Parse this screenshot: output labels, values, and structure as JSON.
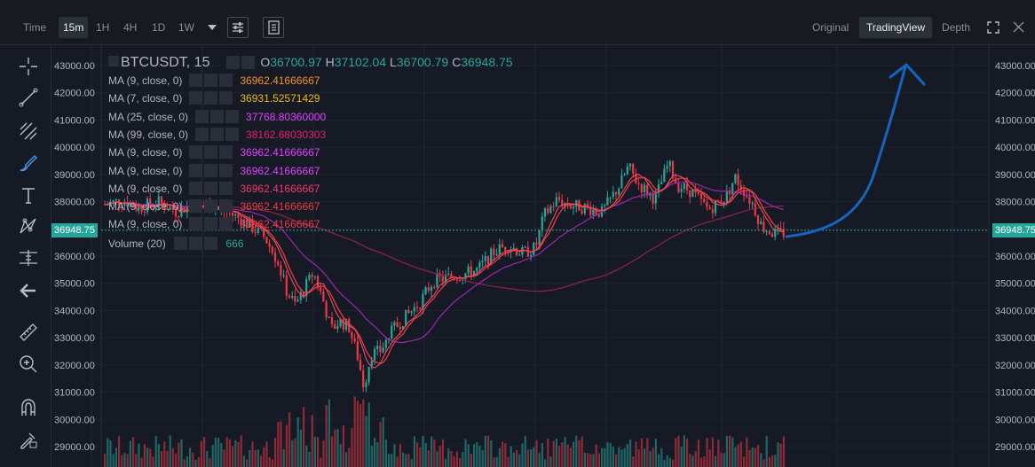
{
  "toolbar": {
    "time_label": "Time",
    "intervals": [
      "15m",
      "1H",
      "4H",
      "1D",
      "1W"
    ],
    "active_interval": "15m",
    "views": [
      "Original",
      "TradingView",
      "Depth"
    ],
    "active_view": "TradingView"
  },
  "chart": {
    "symbol": "BTCUSDT, 15",
    "ohlc": {
      "o_label": "O",
      "o": "36700.97",
      "h_label": "H",
      "h": "37102.04",
      "l_label": "L",
      "l": "36700.79",
      "c_label": "C",
      "c": "36948.75"
    },
    "indicators": [
      {
        "label": "MA (9, close, 0)",
        "value": "36962.41666667",
        "color": "#f7931a"
      },
      {
        "label": "MA (7, close, 0)",
        "value": "36931.52571429",
        "color": "#f0b90b"
      },
      {
        "label": "MA (25, close, 0)",
        "value": "37768.80360000",
        "color": "#e040fb"
      },
      {
        "label": "MA (99, close, 0)",
        "value": "38162.68030303",
        "color": "#e91e63"
      },
      {
        "label": "MA (9, close, 0)",
        "value": "36962.41666667",
        "color": "#e040fb"
      },
      {
        "label": "MA (9, close, 0)",
        "value": "36962.41666667",
        "color": "#e040fb"
      },
      {
        "label": "MA (9, close, 0)",
        "value": "36962.41666667",
        "color": "#f23670"
      },
      {
        "label": "MA (9, close, 0)",
        "value": "36962.41666667",
        "color": "#f23645"
      },
      {
        "label": "MA (9, close, 0)",
        "value": "36962.41666667",
        "color": "#f23645"
      }
    ],
    "volume": {
      "label": "Volume (20)",
      "value": "666"
    },
    "current_price": "36948.75",
    "price_axis": [
      "43000.00",
      "42000.00",
      "41000.00",
      "40000.00",
      "39000.00",
      "38000.00",
      "37000.00",
      "36000.00",
      "35000.00",
      "34000.00",
      "33000.00",
      "32000.00",
      "31000.00",
      "30000.00",
      "29000.00"
    ],
    "colors": {
      "up": "#26a69a",
      "down": "#f23645",
      "arrow": "#1565c0",
      "ma_purple": "#9c27b0",
      "ma_maroon": "#8e2347"
    }
  },
  "icons": {
    "left_tools": [
      "crosshair-icon",
      "trend-line-icon",
      "fib-icon",
      "brush-icon",
      "text-icon",
      "pattern-icon",
      "measure-icon",
      "back-arrow-icon",
      "ruler-icon",
      "zoom-in-icon",
      "magnet-icon",
      "lock-edit-icon"
    ],
    "top": [
      "chart-settings-icon",
      "indicators-icon",
      "fullscreen-icon",
      "close-icon"
    ]
  }
}
